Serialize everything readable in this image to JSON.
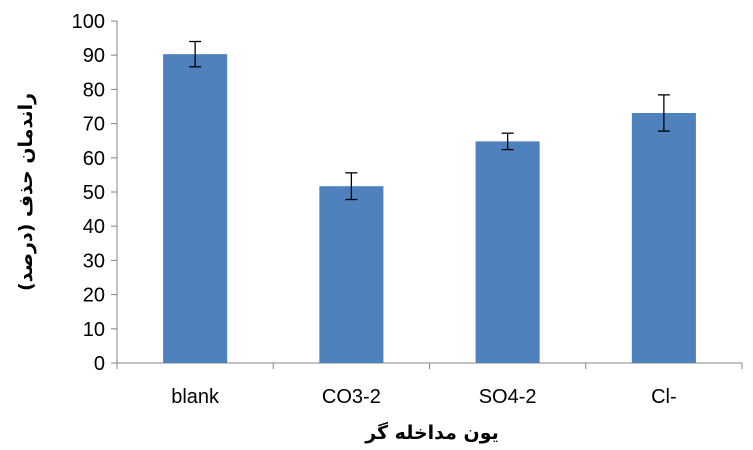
{
  "chart_data": {
    "type": "bar",
    "categories": [
      "blank",
      "CO3-2",
      "SO4-2",
      "Cl-"
    ],
    "values": [
      90.3,
      51.7,
      64.8,
      73.1
    ],
    "error": [
      3.7,
      3.9,
      2.4,
      5.3
    ],
    "xlabel": "یون مداخله گر",
    "ylabel": "راندمان حذف (درصد)",
    "ylim": [
      0,
      100
    ],
    "yticks": [
      0,
      10,
      20,
      30,
      40,
      50,
      60,
      70,
      80,
      90,
      100
    ],
    "grid": false,
    "bar_color": "#4f81bd"
  }
}
